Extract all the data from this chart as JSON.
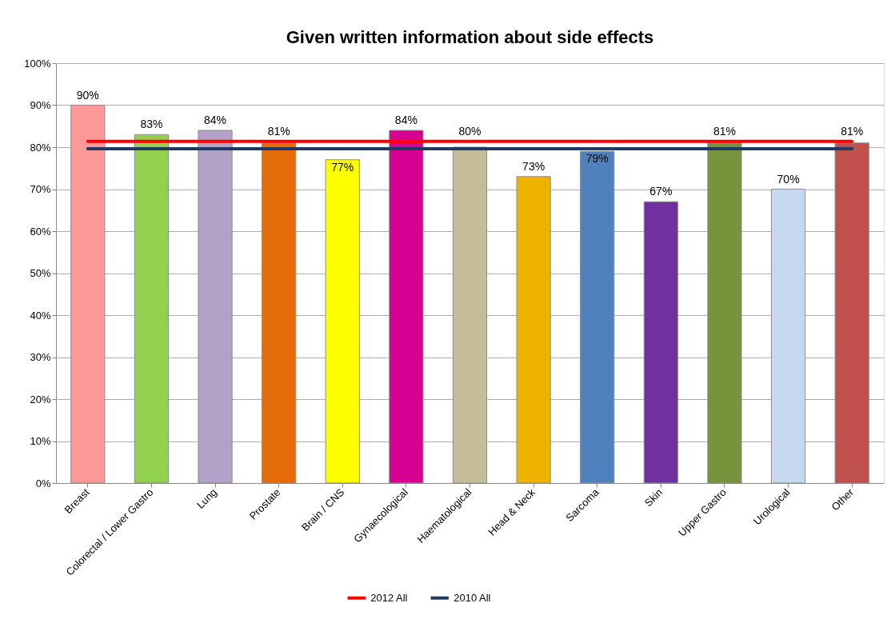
{
  "chart_data": {
    "type": "bar",
    "title": "Given written information about side effects",
    "categories": [
      "Breast",
      "Colorectal / Lower Gastro",
      "Lung",
      "Prostate",
      "Brain / CNS",
      "Gynaecological",
      "Haematological",
      "Head & Neck",
      "Sarcoma",
      "Skin",
      "Upper Gastro",
      "Urological",
      "Other"
    ],
    "series": [
      {
        "colors": [
          "#ff9999",
          "#92d050",
          "#b2a2c7",
          "#e46c0a",
          "#ffff00",
          "#d60093",
          "#c4bd97",
          "#eeb300",
          "#4f81bd",
          "#7030a0",
          "#77933c",
          "#c6d9f1",
          "#c0504d"
        ],
        "values": [
          90,
          83,
          84,
          81,
          77,
          84,
          80,
          73,
          79,
          67,
          81,
          70,
          81
        ],
        "value_labels": [
          "90%",
          "83%",
          "84%",
          "81%",
          "77%",
          "84%",
          "80%",
          "73%",
          "79%",
          "67%",
          "81%",
          "70%",
          "81%"
        ]
      },
      {
        "type": "line",
        "name": "2012 All",
        "color": "#ff0000",
        "values": [
          81.4,
          81.4,
          81.4,
          81.4,
          81.4,
          81.4,
          81.4,
          81.4,
          81.4,
          81.4,
          81.4,
          81.4,
          81.4
        ]
      },
      {
        "type": "line",
        "name": "2010 All",
        "color": "#1f3864",
        "values": [
          79.6,
          79.6,
          79.6,
          79.6,
          79.6,
          79.6,
          79.6,
          79.6,
          79.6,
          79.6,
          79.6,
          79.6,
          79.6
        ]
      }
    ],
    "ylim": [
      0,
      100
    ],
    "yticks": [
      {
        "value": 0,
        "label": "0%"
      },
      {
        "value": 10,
        "label": "10%"
      },
      {
        "value": 20,
        "label": "20%"
      },
      {
        "value": 30,
        "label": "30%"
      },
      {
        "value": 40,
        "label": "40%"
      },
      {
        "value": 50,
        "label": "50%"
      },
      {
        "value": 60,
        "label": "60%"
      },
      {
        "value": 70,
        "label": "70%"
      },
      {
        "value": 80,
        "label": "80%"
      },
      {
        "value": 90,
        "label": "90%"
      },
      {
        "value": 100,
        "label": "100%"
      }
    ],
    "grid": "y",
    "legend": "bottom"
  }
}
